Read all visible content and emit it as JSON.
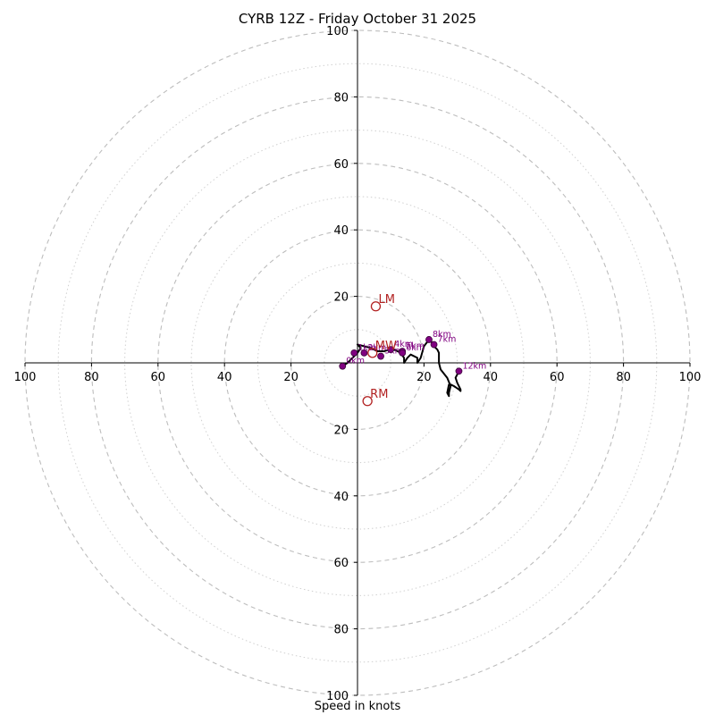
{
  "chart_data": {
    "type": "hodograph",
    "title": "CYRB 12Z - Friday October 31 2025",
    "xlabel": "Speed in knots",
    "range": [
      -100,
      100
    ],
    "rings": {
      "major": [
        20,
        40,
        60,
        80,
        100
      ],
      "minor": [
        10,
        30,
        50,
        70,
        90
      ]
    },
    "x_tick_labels": [
      "100",
      "80",
      "60",
      "40",
      "20",
      "20",
      "40",
      "60",
      "80",
      "100"
    ],
    "x_tick_values": [
      -100,
      -80,
      -60,
      -40,
      -20,
      20,
      40,
      60,
      80,
      100
    ],
    "y_tick_labels": [
      "100",
      "80",
      "60",
      "40",
      "20",
      "20",
      "40",
      "60",
      "80",
      "100"
    ],
    "y_tick_values": [
      100,
      80,
      60,
      40,
      20,
      -20,
      -40,
      -60,
      -80,
      -100
    ],
    "trace": [
      [
        -4.5,
        -1
      ],
      [
        -3,
        0
      ],
      [
        -1.5,
        1.5
      ],
      [
        0,
        3
      ],
      [
        1,
        4.5
      ],
      [
        0,
        5.5
      ],
      [
        2,
        5
      ],
      [
        4,
        4.5
      ],
      [
        6,
        3.5
      ],
      [
        8,
        3.5
      ],
      [
        10,
        4.2
      ],
      [
        11.5,
        3.8
      ],
      [
        13,
        3
      ],
      [
        14,
        1.5
      ],
      [
        14,
        0
      ],
      [
        15,
        1.5
      ],
      [
        16,
        2.5
      ],
      [
        18,
        1.5
      ],
      [
        18,
        0
      ],
      [
        19,
        1.5
      ],
      [
        20,
        5
      ],
      [
        21.5,
        7
      ],
      [
        22.5,
        6
      ],
      [
        23,
        5
      ],
      [
        24,
        4
      ],
      [
        24.5,
        3
      ],
      [
        24.5,
        0
      ],
      [
        25,
        -2
      ],
      [
        27,
        -4.5
      ],
      [
        28,
        -7
      ],
      [
        27.5,
        -9
      ],
      [
        27.5,
        -10
      ],
      [
        27,
        -9
      ],
      [
        27.5,
        -6.5
      ],
      [
        28,
        -6.5
      ],
      [
        29,
        -7
      ],
      [
        30.5,
        -8
      ],
      [
        31,
        -8.5
      ],
      [
        31,
        -8
      ],
      [
        30,
        -6
      ],
      [
        29.5,
        -4.5
      ],
      [
        30.5,
        -2.5
      ]
    ],
    "height_markers": [
      {
        "label": "0km",
        "u": -4.5,
        "v": -1
      },
      {
        "label": "1km",
        "u": -1,
        "v": 3
      },
      {
        "label": "2km",
        "u": 2,
        "v": 3
      },
      {
        "label": "3km",
        "u": 7,
        "v": 2
      },
      {
        "label": "4km",
        "u": 10,
        "v": 4
      },
      {
        "label": "5km",
        "u": 13.5,
        "v": 3.5
      },
      {
        "label": "6km",
        "u": 13.5,
        "v": 3
      },
      {
        "label": "7km",
        "u": 23,
        "v": 5.5
      },
      {
        "label": "8km",
        "u": 21.5,
        "v": 7
      },
      {
        "label": "12km",
        "u": 30.5,
        "v": -2.5
      }
    ],
    "storm_motion": [
      {
        "label": "LM",
        "u": 5.5,
        "v": 17
      },
      {
        "label": "MW",
        "u": 4.5,
        "v": 3
      },
      {
        "label": "RM",
        "u": 3,
        "v": -11.5
      }
    ]
  }
}
